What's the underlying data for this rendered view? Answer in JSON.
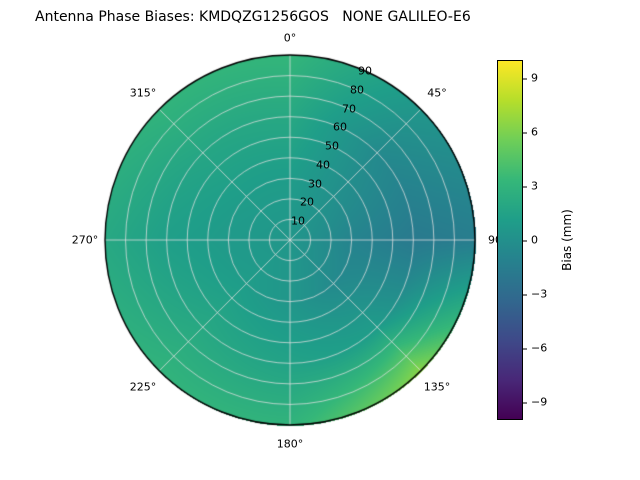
{
  "chart_data": {
    "type": "heatmap",
    "projection": "polar",
    "title": "Antenna Phase Biases: KMDQZG1256GOS   NONE GALILEO-E6",
    "angular_ticks": [
      "0°",
      "45°",
      "90",
      "135°",
      "180°",
      "225°",
      "270°",
      "315°"
    ],
    "radial_ticks": [
      "10",
      "20",
      "30",
      "40",
      "50",
      "60",
      "70",
      "80",
      "90"
    ],
    "radial_range": [
      0,
      90
    ],
    "azimuth_deg": [
      0,
      45,
      90,
      135,
      180,
      225,
      270,
      315
    ],
    "zenith_deg": [
      0,
      30,
      60,
      90
    ],
    "bias_mm_grid": [
      [
        0.5,
        1.0,
        2.0,
        3.2
      ],
      [
        0.5,
        0.0,
        -0.5,
        0.5
      ],
      [
        0.5,
        -1.0,
        -1.8,
        -1.5
      ],
      [
        0.5,
        -0.5,
        1.0,
        6.5
      ],
      [
        0.5,
        0.5,
        1.5,
        3.0
      ],
      [
        0.5,
        1.0,
        2.0,
        3.0
      ],
      [
        0.5,
        0.8,
        1.2,
        2.0
      ],
      [
        0.5,
        1.0,
        1.8,
        3.0
      ]
    ],
    "colorbar": {
      "label": "Bias (mm)",
      "ticks": [
        "9",
        "6",
        "3",
        "0",
        "−3",
        "−6",
        "−9"
      ],
      "tick_values": [
        9,
        6,
        3,
        0,
        -3,
        -6,
        -9
      ],
      "range": [
        -10,
        10
      ],
      "colormap": "viridis"
    },
    "colormap_stops": [
      "#440154",
      "#482878",
      "#3e4a89",
      "#31688e",
      "#26828e",
      "#1f9e89",
      "#35b779",
      "#6ece58",
      "#b5de2b",
      "#fde725"
    ],
    "grid": true,
    "grid_color": "rgba(225,225,225,0.85)",
    "outline_color": "#000000"
  }
}
